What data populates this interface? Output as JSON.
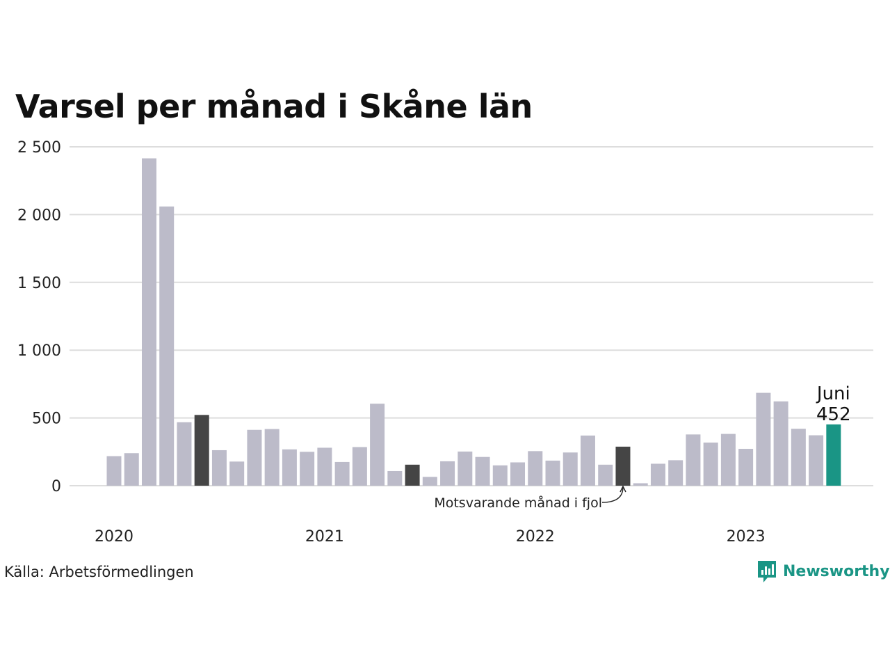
{
  "chart_data": {
    "type": "bar",
    "title": "Varsel per månad i Skåne län",
    "xlabel": "",
    "ylabel": "",
    "ylim": [
      0,
      2500
    ],
    "yticks": [
      0,
      500,
      1000,
      1500,
      2000,
      2500
    ],
    "ytick_labels": [
      "0",
      "500",
      "1 000",
      "1 500",
      "2 000",
      "2 500"
    ],
    "grid": true,
    "year_labels": [
      {
        "label": "2020",
        "index": 0
      },
      {
        "label": "2021",
        "index": 12
      },
      {
        "label": "2022",
        "index": 24
      },
      {
        "label": "2023",
        "index": 36
      }
    ],
    "categories": [
      "2020-01",
      "2020-02",
      "2020-03",
      "2020-04",
      "2020-05",
      "2020-06",
      "2020-07",
      "2020-08",
      "2020-09",
      "2020-10",
      "2020-11",
      "2020-12",
      "2021-01",
      "2021-02",
      "2021-03",
      "2021-04",
      "2021-05",
      "2021-06",
      "2021-07",
      "2021-08",
      "2021-09",
      "2021-10",
      "2021-11",
      "2021-12",
      "2022-01",
      "2022-02",
      "2022-03",
      "2022-04",
      "2022-05",
      "2022-06",
      "2022-07",
      "2022-08",
      "2022-09",
      "2022-10",
      "2022-11",
      "2022-12",
      "2023-01",
      "2023-02",
      "2023-03",
      "2023-04",
      "2023-05",
      "2023-06"
    ],
    "values": [
      218,
      240,
      2415,
      2060,
      468,
      522,
      262,
      178,
      412,
      418,
      268,
      250,
      280,
      175,
      285,
      605,
      108,
      155,
      65,
      180,
      252,
      212,
      150,
      172,
      255,
      185,
      245,
      370,
      155,
      288,
      18,
      162,
      188,
      378,
      318,
      382,
      272,
      685,
      622,
      420,
      372,
      452
    ],
    "highlight": {
      "same_month_indices": [
        5,
        17,
        29
      ],
      "current_index": 41
    },
    "colors": {
      "default": "#bcbbc9",
      "same_month": "#454545",
      "current": "#1a9585",
      "grid": "#dddddd"
    },
    "annotations": {
      "current_month": "Juni",
      "current_value": "452",
      "same_month_note": "Motsvarande månad i fjol"
    }
  },
  "footer": {
    "source": "Källa: Arbetsförmedlingen",
    "brand": "Newsworthy",
    "brand_icon": "newsworthy-logo-icon"
  }
}
